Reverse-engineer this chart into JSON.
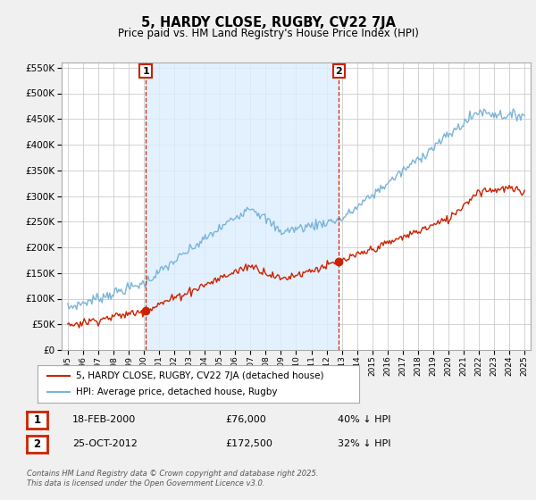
{
  "title": "5, HARDY CLOSE, RUGBY, CV22 7JA",
  "subtitle": "Price paid vs. HM Land Registry's House Price Index (HPI)",
  "ylim": [
    0,
    560000
  ],
  "yticks": [
    0,
    50000,
    100000,
    150000,
    200000,
    250000,
    300000,
    350000,
    400000,
    450000,
    500000,
    550000
  ],
  "xlim_start": 1994.6,
  "xlim_end": 2025.4,
  "hpi_color": "#7ab4d8",
  "price_color": "#cc2200",
  "vline_color": "#cc2200",
  "shade_color": "#ddeeff",
  "marker1_x": 2000.12,
  "marker1_y": 76000,
  "marker2_x": 2012.81,
  "marker2_y": 172500,
  "legend_label_price": "5, HARDY CLOSE, RUGBY, CV22 7JA (detached house)",
  "legend_label_hpi": "HPI: Average price, detached house, Rugby",
  "annotation1_label": "1",
  "annotation2_label": "2",
  "table_row1": [
    "1",
    "18-FEB-2000",
    "£76,000",
    "40% ↓ HPI"
  ],
  "table_row2": [
    "2",
    "25-OCT-2012",
    "£172,500",
    "32% ↓ HPI"
  ],
  "footer": "Contains HM Land Registry data © Crown copyright and database right 2025.\nThis data is licensed under the Open Government Licence v3.0.",
  "background_color": "#f0f0f0",
  "plot_bg_color": "#ffffff",
  "grid_color": "#cccccc"
}
